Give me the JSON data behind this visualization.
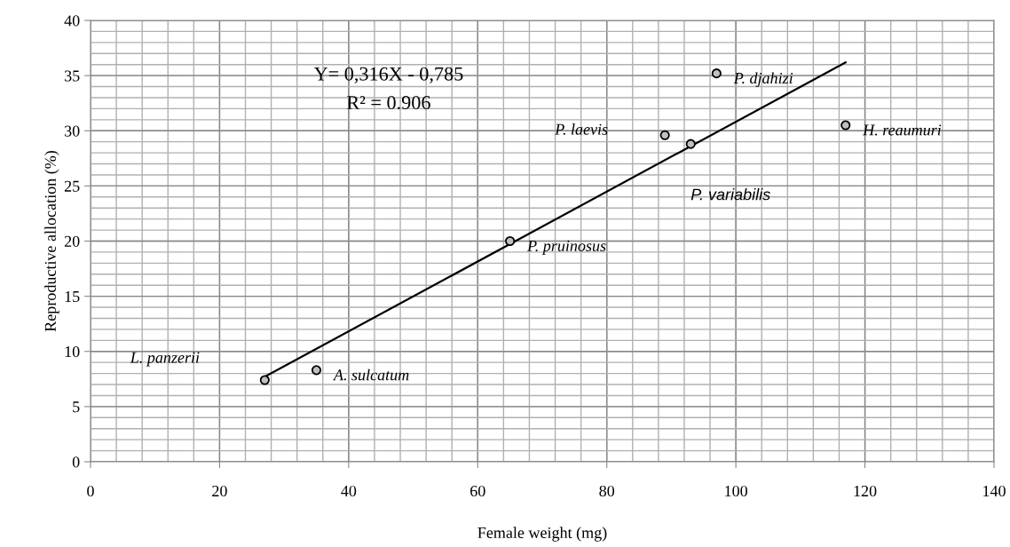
{
  "chart_data": {
    "type": "scatter",
    "xlabel": "Female weight (mg)",
    "ylabel": "Reproductive allocation (%)",
    "xlim": [
      0,
      140
    ],
    "xticks": [
      0,
      20,
      40,
      60,
      80,
      100,
      120,
      140
    ],
    "ylim": [
      0,
      40
    ],
    "yticks": [
      0,
      5,
      10,
      15,
      20,
      25,
      30,
      35,
      40
    ],
    "grid": true,
    "series": [
      {
        "marker": "circle",
        "color": "#c0c0c0",
        "x": [
          27,
          35,
          65,
          89,
          93,
          97,
          117
        ],
        "values": [
          7.4,
          8.3,
          20.0,
          29.6,
          28.8,
          35.2,
          30.5
        ]
      },
      {
        "type": "line",
        "color": "#000000",
        "x": [
          27,
          117
        ],
        "values": [
          7.7,
          36.2
        ]
      }
    ],
    "annotations": [
      "L. panzerii",
      {
        "text": "A. sulcatum",
        "x": 35,
        "y": 8.3
      },
      {
        "text": "P. pruinosus",
        "x": 65,
        "y": 20.0
      },
      "P. laevis",
      {
        "text": "P. variabilis",
        "x": 93,
        "y": 28.8
      },
      {
        "text": "P. djahizi",
        "x": 97,
        "y": 35.2
      },
      {
        "text": "H. reaumuri",
        "x": 117,
        "y": 30.5
      },
      "Y= 0,316X - 0,785",
      "R² = 0.906"
    ]
  }
}
